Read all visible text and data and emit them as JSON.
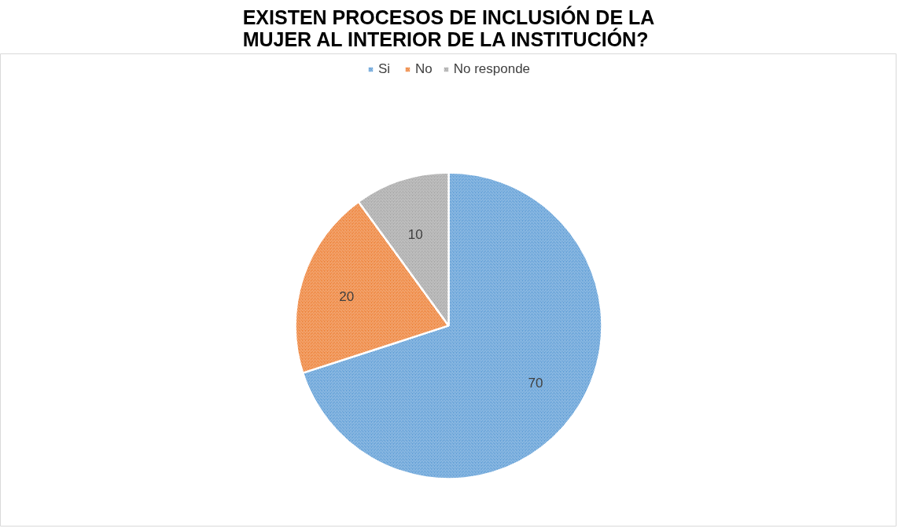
{
  "chart_data": {
    "type": "pie",
    "title": "EXISTEN PROCESOS DE INCLUSIÓN DE LA MUJER AL INTERIOR DE LA INSTITUCIÓN?",
    "categories": [
      "Si",
      "No",
      "No responde"
    ],
    "values": [
      70,
      20,
      10
    ],
    "colors": [
      "#5b9bd5",
      "#ed7d31",
      "#a5a5a5"
    ],
    "data_labels": true,
    "legend": "top"
  }
}
